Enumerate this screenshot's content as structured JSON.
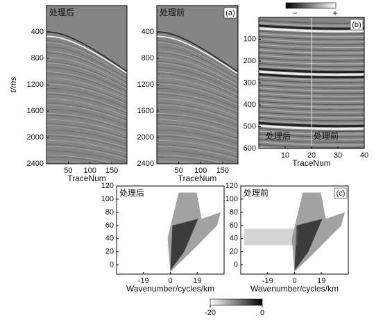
{
  "chart_data": [
    {
      "type": "image",
      "title": "处理后",
      "ylabel": "t/ms",
      "xlabel": "TraceNum",
      "xlim": [
        0,
        185
      ],
      "ylim": [
        0,
        2400
      ],
      "xticks": [
        50,
        100,
        150
      ],
      "yticks": [
        400,
        800,
        1200,
        1600,
        2000,
        2400
      ],
      "y_inverted": true
    },
    {
      "type": "image",
      "title": "处理前",
      "panel_label": "(a)",
      "xlabel": "TraceNum",
      "xlim": [
        0,
        185
      ],
      "ylim": [
        0,
        2400
      ],
      "xticks": [
        50,
        100,
        150
      ],
      "yticks": [
        400,
        800,
        1200,
        1600,
        2000,
        2400
      ],
      "y_inverted": true
    },
    {
      "type": "image",
      "panel_label": "(b)",
      "annotations": [
        "处理后",
        "处理前"
      ],
      "xlabel": "TraceNum",
      "xlim": [
        0,
        40
      ],
      "ylim": [
        0,
        600
      ],
      "xticks": [
        10,
        20,
        30,
        40
      ],
      "yticks": [
        100,
        200,
        300,
        400,
        500,
        600
      ],
      "y_inverted": true,
      "colorbar_labels": [
        "−",
        "+"
      ]
    },
    {
      "type": "spectrum",
      "title": "处理后",
      "xlabel": "Wavenumber/cycles/km",
      "xlim": [
        -38,
        38
      ],
      "ylim": [
        -14,
        120
      ],
      "xticks": [
        -19,
        0,
        19
      ],
      "yticks": [
        0,
        20,
        40,
        60,
        80,
        100,
        120
      ]
    },
    {
      "type": "spectrum",
      "title": "处理前",
      "panel_label": "(c)",
      "xlabel": "Wavenumber/cycles/km",
      "xlim": [
        -38,
        38
      ],
      "ylim": [
        -14,
        120
      ],
      "xticks": [
        -19,
        0,
        19
      ],
      "yticks": [
        0,
        20,
        40,
        60,
        80,
        100,
        120
      ],
      "clim": [
        -20,
        0
      ],
      "cticks": [
        -20,
        0
      ]
    }
  ]
}
